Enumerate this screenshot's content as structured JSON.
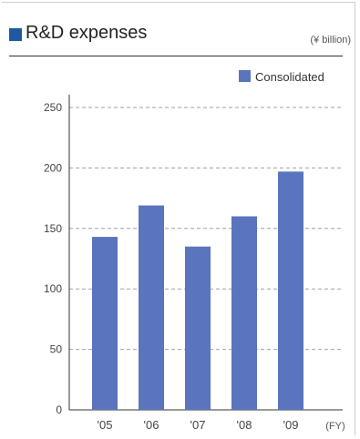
{
  "header": {
    "title": "R&D expenses",
    "unit": "(¥ billion)"
  },
  "colors": {
    "title_square": "#1f5aa0",
    "bar": "#5a74bd",
    "grid": "#a0a0a0",
    "axis": "#333333"
  },
  "chart_data": {
    "type": "bar",
    "title": "R&D expenses",
    "unit_label": "(¥ billion)",
    "categories": [
      "'05",
      "'06",
      "'07",
      "'08",
      "'09"
    ],
    "series": [
      {
        "name": "Consolidated",
        "values": [
          143,
          169,
          135,
          160,
          197
        ]
      }
    ],
    "xlabel": "(FY)",
    "ylabel": "",
    "ylim": [
      0,
      250
    ],
    "yticks": [
      0,
      50,
      100,
      150,
      200,
      250
    ],
    "grid": true,
    "grid_style": "dashed",
    "legend": "top-right"
  }
}
